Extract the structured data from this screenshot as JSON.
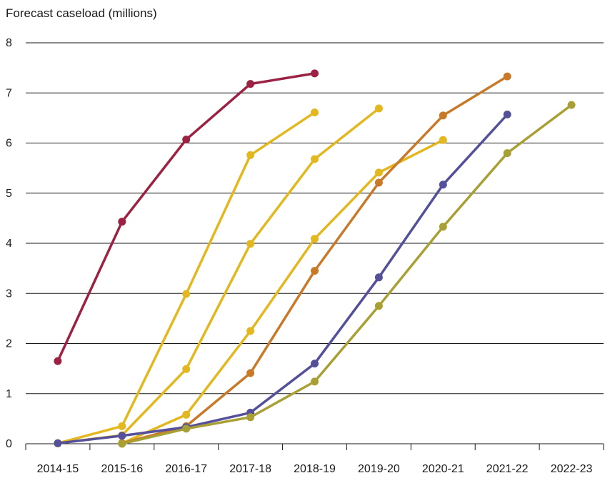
{
  "chart_data": {
    "type": "line",
    "title": "Forecast caseload (millions)",
    "xlabel": "",
    "ylabel": "",
    "categories": [
      "2014-15",
      "2015-16",
      "2016-17",
      "2017-18",
      "2018-19",
      "2019-20",
      "2020-21",
      "2021-22",
      "2022-23"
    ],
    "ylim": [
      0,
      8
    ],
    "yticks": [
      0,
      1,
      2,
      3,
      4,
      5,
      6,
      7,
      8
    ],
    "grid": true,
    "legend": "none",
    "colors": {
      "crimson": "#9b2242",
      "yellow": "#e2b720",
      "orange": "#c87a2a",
      "purple": "#55509a",
      "olive": "#a9a035"
    },
    "series": [
      {
        "color": "#9b2242",
        "values": [
          1.65,
          4.43,
          6.07,
          7.18,
          7.39,
          null,
          null,
          null,
          null
        ]
      },
      {
        "color": "#e2b720",
        "values": [
          0.01,
          0.35,
          2.99,
          5.76,
          6.61,
          null,
          null,
          null,
          null
        ]
      },
      {
        "color": "#e2b720",
        "values": [
          0.01,
          0.17,
          1.49,
          3.99,
          5.68,
          6.69,
          null,
          null,
          null
        ]
      },
      {
        "color": "#e2b720",
        "values": [
          null,
          0.01,
          0.58,
          2.25,
          4.09,
          5.41,
          6.06,
          null,
          null
        ]
      },
      {
        "color": "#c87a2a",
        "values": [
          null,
          0.01,
          0.35,
          1.41,
          3.45,
          5.21,
          6.55,
          7.33,
          null
        ]
      },
      {
        "color": "#55509a",
        "values": [
          0.01,
          0.16,
          0.33,
          0.62,
          1.6,
          3.32,
          5.17,
          6.57,
          null
        ]
      },
      {
        "color": "#a9a035",
        "values": [
          null,
          0.0,
          0.3,
          0.53,
          1.24,
          2.75,
          4.33,
          5.8,
          6.76
        ]
      }
    ]
  }
}
